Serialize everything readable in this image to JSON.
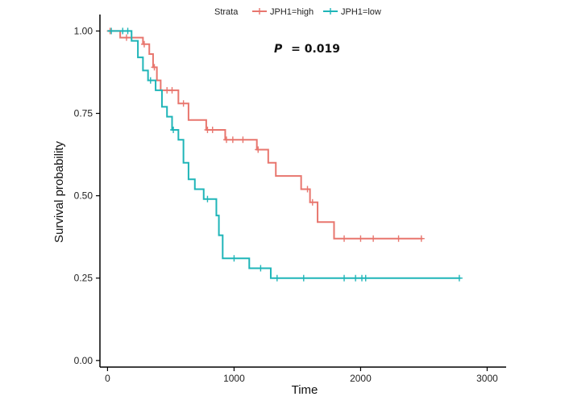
{
  "chart_data": {
    "type": "line",
    "subtype": "kaplan-meier survival curve",
    "xlabel": "Time",
    "ylabel": "Survival probability",
    "xlim": [
      -60,
      3150
    ],
    "ylim": [
      -0.02,
      1.05
    ],
    "x_ticks": [
      0,
      1000,
      2000,
      3000
    ],
    "x_tick_labels": [
      "0",
      "1000",
      "2000",
      "3000"
    ],
    "y_ticks": [
      0.0,
      0.25,
      0.5,
      0.75,
      1.0
    ],
    "y_tick_labels": [
      "0.00",
      "0.25",
      "0.50",
      "0.75",
      "1.00"
    ],
    "grid": false,
    "legend": {
      "title": "Strata",
      "position": "top"
    },
    "annotation": {
      "p_label": "P",
      "p_value": "= 0.019"
    },
    "series": [
      {
        "name": "JPH1=high",
        "color": "#E8766E",
        "steps": [
          [
            0,
            1.0
          ],
          [
            100,
            0.98
          ],
          [
            180,
            0.98
          ],
          [
            280,
            0.96
          ],
          [
            330,
            0.93
          ],
          [
            360,
            0.89
          ],
          [
            390,
            0.85
          ],
          [
            420,
            0.82
          ],
          [
            560,
            0.78
          ],
          [
            640,
            0.73
          ],
          [
            780,
            0.7
          ],
          [
            930,
            0.67
          ],
          [
            1180,
            0.64
          ],
          [
            1270,
            0.6
          ],
          [
            1330,
            0.56
          ],
          [
            1530,
            0.52
          ],
          [
            1600,
            0.48
          ],
          [
            1660,
            0.42
          ],
          [
            1790,
            0.37
          ],
          [
            2490,
            0.37
          ]
        ],
        "censored": [
          [
            20,
            1.0
          ],
          [
            150,
            0.98
          ],
          [
            290,
            0.96
          ],
          [
            370,
            0.89
          ],
          [
            470,
            0.82
          ],
          [
            510,
            0.82
          ],
          [
            600,
            0.78
          ],
          [
            790,
            0.7
          ],
          [
            830,
            0.7
          ],
          [
            940,
            0.67
          ],
          [
            990,
            0.67
          ],
          [
            1070,
            0.67
          ],
          [
            1190,
            0.64
          ],
          [
            1580,
            0.52
          ],
          [
            1620,
            0.48
          ],
          [
            1870,
            0.37
          ],
          [
            2000,
            0.37
          ],
          [
            2100,
            0.37
          ],
          [
            2300,
            0.37
          ],
          [
            2480,
            0.37
          ]
        ]
      },
      {
        "name": "JPH1=low",
        "color": "#1FB5B8",
        "steps": [
          [
            0,
            1.0
          ],
          [
            190,
            0.97
          ],
          [
            240,
            0.92
          ],
          [
            280,
            0.88
          ],
          [
            320,
            0.85
          ],
          [
            380,
            0.82
          ],
          [
            430,
            0.77
          ],
          [
            470,
            0.74
          ],
          [
            510,
            0.7
          ],
          [
            560,
            0.67
          ],
          [
            600,
            0.6
          ],
          [
            640,
            0.55
          ],
          [
            690,
            0.52
          ],
          [
            760,
            0.49
          ],
          [
            860,
            0.44
          ],
          [
            880,
            0.38
          ],
          [
            910,
            0.31
          ],
          [
            1120,
            0.28
          ],
          [
            1290,
            0.25
          ],
          [
            2790,
            0.25
          ]
        ],
        "censored": [
          [
            30,
            1.0
          ],
          [
            120,
            1.0
          ],
          [
            160,
            1.0
          ],
          [
            340,
            0.85
          ],
          [
            520,
            0.7
          ],
          [
            790,
            0.49
          ],
          [
            1000,
            0.31
          ],
          [
            1210,
            0.28
          ],
          [
            1340,
            0.25
          ],
          [
            1550,
            0.25
          ],
          [
            1870,
            0.25
          ],
          [
            1960,
            0.25
          ],
          [
            2010,
            0.25
          ],
          [
            2040,
            0.25
          ],
          [
            2780,
            0.25
          ]
        ]
      }
    ]
  }
}
